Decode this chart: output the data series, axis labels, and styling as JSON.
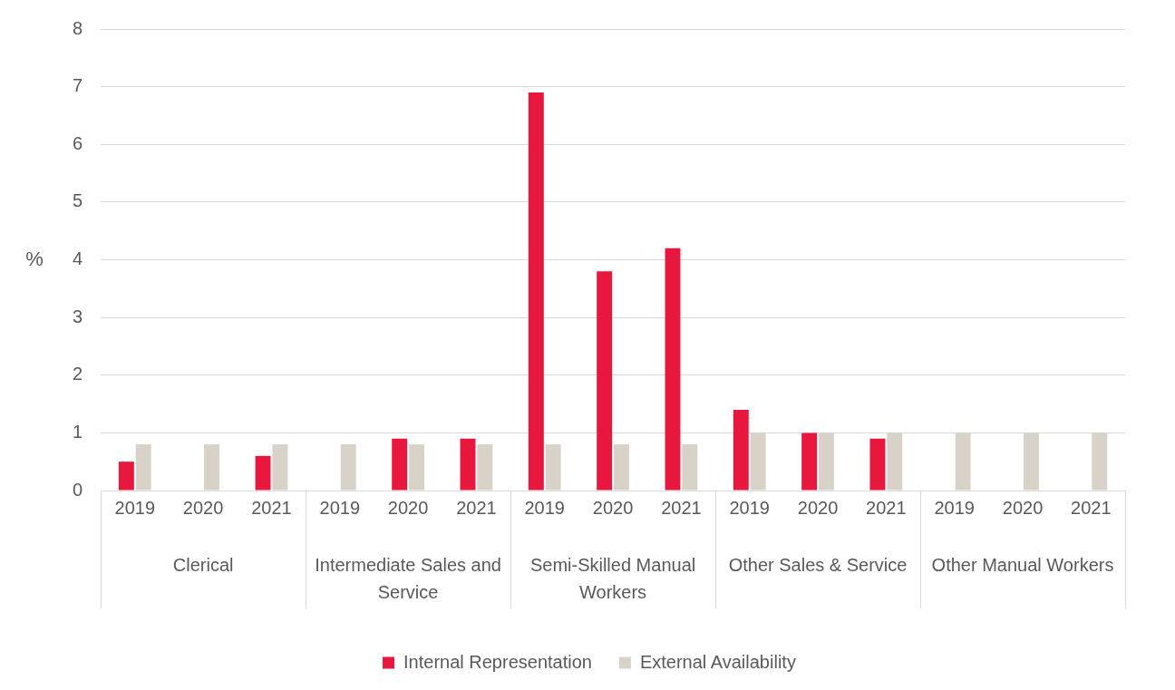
{
  "chart_data": {
    "type": "bar",
    "ylabel": "%",
    "categories": [
      "2019",
      "2020",
      "2021",
      "2019",
      "2020",
      "2021",
      "2019",
      "2020",
      "2021",
      "2019",
      "2020",
      "2021",
      "2019",
      "2020",
      "2021"
    ],
    "annotations": [
      "Clerical",
      "Intermediate Sales and Service",
      "Semi-Skilled Manual Workers",
      "Other Sales & Service",
      "Other Manual Workers"
    ],
    "series": [
      {
        "name": "Internal Representation",
        "color": "#e8173e",
        "values": [
          0.5,
          null,
          0.6,
          null,
          0.9,
          0.9,
          6.9,
          3.8,
          4.2,
          1.4,
          1.0,
          0.9,
          null,
          null,
          null
        ]
      },
      {
        "name": "External Availability",
        "color": "#d9d2c8",
        "values": [
          0.8,
          0.8,
          0.8,
          0.8,
          0.8,
          0.8,
          0.8,
          0.8,
          0.8,
          1.0,
          1.0,
          1.0,
          1.0,
          1.0,
          1.0
        ]
      }
    ],
    "ylim": [
      0,
      8
    ],
    "yticks": [
      0,
      1,
      2,
      3,
      4,
      5,
      6,
      7,
      8
    ],
    "grid": "y",
    "legend": "bottom"
  }
}
